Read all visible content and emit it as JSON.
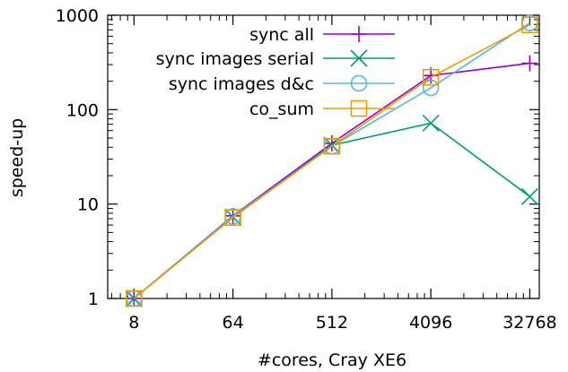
{
  "chart_data": {
    "type": "line",
    "title": "",
    "xlabel": "#cores, Cray XE6",
    "ylabel": "speed-up",
    "x_scale": "log2",
    "y_scale": "log10",
    "xlim": [
      4.6,
      40000
    ],
    "ylim": [
      1,
      1000
    ],
    "x": [
      8,
      64,
      512,
      4096,
      32768
    ],
    "x_ticks": [
      "8",
      "64",
      "512",
      "4096",
      "32768"
    ],
    "y_ticks": [
      "1",
      "10",
      "100",
      "1000"
    ],
    "grid": false,
    "legend_position": "top-right",
    "series": [
      {
        "name": "sync all",
        "color": "#9400d3",
        "marker": "plus",
        "values": [
          1,
          7.5,
          44,
          230,
          310
        ]
      },
      {
        "name": "sync images serial",
        "color": "#009e73",
        "marker": "cross",
        "values": [
          1,
          7.3,
          42,
          72,
          12
        ]
      },
      {
        "name": "sync images d&c",
        "color": "#56b4e9",
        "marker": "circle",
        "values": [
          1,
          7.4,
          41,
          170,
          830
        ]
      },
      {
        "name": "co_sum",
        "color": "#e69f00",
        "marker": "square",
        "values": [
          1,
          7.2,
          41,
          220,
          790
        ]
      }
    ]
  }
}
